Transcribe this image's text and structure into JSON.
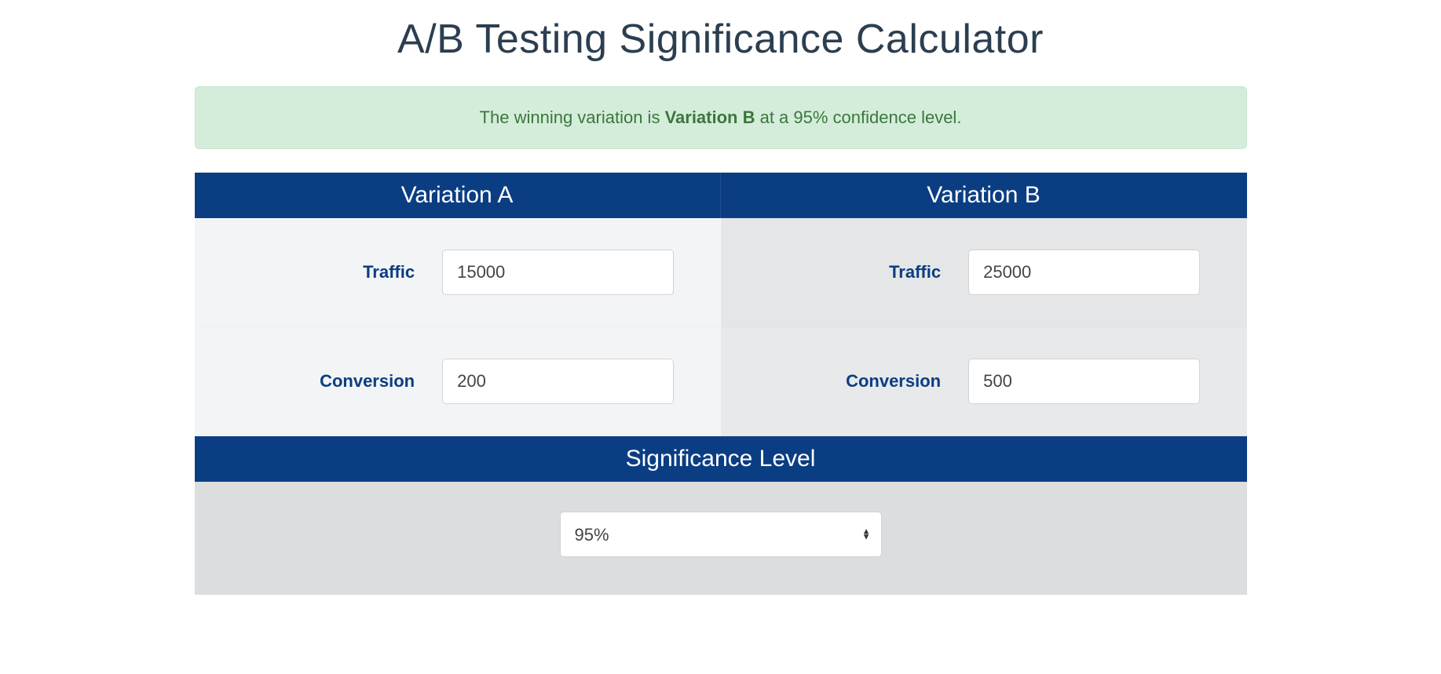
{
  "colors": {
    "header_bg": "#0b3d82",
    "header_text": "#ffffff",
    "banner_bg": "#d4edda",
    "banner_border": "#c3e6cb",
    "banner_text": "#3c763d",
    "title_text": "#2c3e50",
    "label_text": "#0b3d82",
    "col_a_bg": "#f3f4f5",
    "col_b_bg": "#e5e6e7",
    "sig_row_bg": "#dcddde",
    "input_border": "#d0d3d6",
    "input_text": "#444444"
  },
  "title": "A/B Testing Significance Calculator",
  "result": {
    "prefix": "The winning variation is ",
    "winner": "Variation B",
    "suffix": " at a 95% confidence level."
  },
  "variation_a": {
    "header": "Variation A",
    "traffic_label": "Traffic",
    "traffic_value": "15000",
    "conversion_label": "Conversion",
    "conversion_value": "200"
  },
  "variation_b": {
    "header": "Variation B",
    "traffic_label": "Traffic",
    "traffic_value": "25000",
    "conversion_label": "Conversion",
    "conversion_value": "500"
  },
  "significance": {
    "header": "Significance Level",
    "selected": "95%"
  }
}
